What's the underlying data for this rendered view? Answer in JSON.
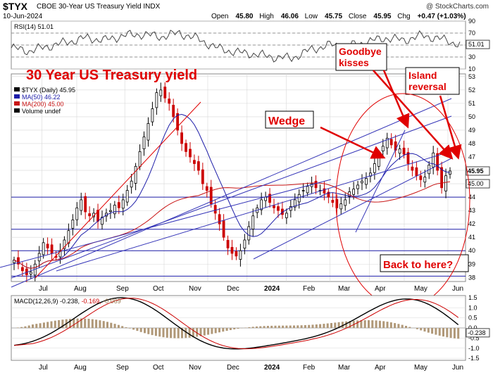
{
  "header": {
    "symbol": "$TYX",
    "name": "CBOE 30-Year US Treasury Yield INDX",
    "date": "10-Jun-2024",
    "brand": "@ StockCharts.com",
    "open_label": "Open",
    "open": "45.80",
    "high_label": "High",
    "high": "46.06",
    "low_label": "Low",
    "low": "45.75",
    "close_label": "Close",
    "close": "45.95",
    "chg_label": "Chg",
    "chg": "+0.47 (+1.03%)"
  },
  "colors": {
    "candle_up": "#000000",
    "candle_down": "#cc0000",
    "ma50": "#1c1ca8",
    "ma200": "#c81414",
    "trendlines": "#3535b8",
    "annotation_red": "#e00000",
    "rsi_line": "#444444",
    "grid": "#d8d8d8",
    "hline": "#1c1ca8"
  },
  "annotations": {
    "main_title": "30 Year US Treasury yield",
    "wedge": "Wedge",
    "goodbye": "Goodbye kisses",
    "goodbye_lines": [
      "Goodbye",
      "kisses"
    ],
    "island": "Island reversal",
    "island_lines": [
      "Island",
      "reversal"
    ],
    "back": "Back to here?"
  },
  "chart_data": [
    {
      "type": "line",
      "title": "RSI(14) 51.01",
      "label": "RSI(14) 51.01",
      "ylim": [
        10,
        90
      ],
      "yticks": [
        10,
        30,
        50,
        70,
        90
      ],
      "reference_lines": [
        30,
        50,
        70
      ],
      "last_value_label": "51.01",
      "x": [
        0,
        10,
        20,
        30,
        40,
        50,
        60,
        70,
        80,
        90,
        100,
        110,
        120,
        130,
        140,
        150,
        160,
        170,
        180,
        190,
        200,
        210,
        220,
        230,
        240
      ],
      "values": [
        45,
        40,
        48,
        55,
        62,
        58,
        66,
        68,
        64,
        70,
        60,
        45,
        38,
        35,
        30,
        28,
        42,
        50,
        48,
        55,
        62,
        58,
        66,
        60,
        51
      ]
    },
    {
      "type": "candlestick",
      "title": "$TYX (Daily) 45.95",
      "legend": [
        {
          "name": "$TYX (Daily) 45.95",
          "color": "#000000"
        },
        {
          "name": "MA(50) 46.22",
          "color": "#1c1ca8"
        },
        {
          "name": "MA(200) 45.00",
          "color": "#c81414"
        },
        {
          "name": "Volume undef",
          "color": "#000000"
        }
      ],
      "ylim": [
        37.7,
        53.2
      ],
      "yticks": [
        38,
        39,
        40,
        41,
        42,
        43,
        44,
        45,
        46,
        47,
        48,
        49,
        50,
        51,
        52,
        53
      ],
      "price_labels": [
        {
          "value": 45.95,
          "label": "45.95"
        },
        {
          "value": 45.0,
          "label": "45.00"
        }
      ],
      "horizontal_levels": [
        44.0,
        41.6,
        40.0,
        38.1
      ],
      "x_ticks": [
        {
          "label": "Jul",
          "x": 0.07
        },
        {
          "label": "Aug",
          "x": 0.15
        },
        {
          "label": "Sep",
          "x": 0.26
        },
        {
          "label": "Oct",
          "x": 0.35
        },
        {
          "label": "Nov",
          "x": 0.45
        },
        {
          "label": "Dec",
          "x": 0.54
        },
        {
          "label": "2024",
          "x": 0.63
        },
        {
          "label": "Feb",
          "x": 0.73
        },
        {
          "label": "Mar",
          "x": 0.82
        },
        {
          "label": "Apr",
          "x": 0.9
        },
        {
          "label": "May",
          "x": 1.0
        }
      ],
      "closes": [
        39.3,
        39.0,
        38.5,
        38.2,
        38.4,
        39.0,
        39.8,
        40.6,
        40.2,
        39.8,
        39.5,
        40.0,
        40.8,
        41.5,
        42.3,
        43.2,
        43.8,
        42.9,
        42.6,
        42.8,
        42.2,
        42.5,
        42.8,
        43.0,
        43.4,
        43.2,
        43.8,
        44.5,
        45.2,
        46.3,
        47.4,
        48.5,
        49.5,
        50.6,
        51.8,
        52.0,
        51.4,
        51.0,
        50.0,
        49.0,
        48.0,
        47.4,
        47.0,
        46.5,
        46.0,
        45.0,
        44.5,
        43.5,
        42.8,
        42.0,
        41.0,
        40.2,
        39.8,
        39.6,
        40.0,
        40.8,
        41.8,
        42.6,
        43.2,
        43.8,
        44.0,
        43.6,
        43.2,
        43.0,
        42.7,
        42.8,
        43.3,
        43.8,
        44.2,
        44.5,
        44.8,
        45.0,
        44.7,
        44.5,
        44.3,
        44.0,
        43.6,
        43.2,
        43.5,
        43.8,
        44.4,
        44.6,
        44.9,
        45.2,
        45.4,
        45.8,
        46.5,
        47.2,
        47.8,
        48.4,
        47.9,
        47.5,
        47.6,
        47.2,
        46.5,
        46.0,
        45.6,
        45.3,
        45.5,
        46.4,
        47.3,
        46.0,
        44.7,
        45.6,
        45.95
      ],
      "volume_label": "Volume undef"
    },
    {
      "type": "line",
      "title": "MACD(12,26,9) -0.238, -0.169, -0.069",
      "label_parts": [
        "MACD(12,26,9)",
        "-0.238",
        "-0.169",
        "-0.069"
      ],
      "series": [
        {
          "name": "MACD",
          "color": "#000000"
        },
        {
          "name": "Signal",
          "color": "#cc0000"
        },
        {
          "name": "Histogram",
          "color": "#b09878"
        }
      ],
      "ylim": [
        -1.6,
        1.6
      ],
      "yticks": [
        1.5,
        1.0,
        0.5,
        0.0,
        -0.5,
        -1.0,
        -1.5
      ],
      "ytick_labels": [
        "1.5",
        "1.0",
        "0.5",
        "0.0",
        "-0.5",
        "-1.0",
        "-1.5"
      ],
      "last_value_label": "-0.238"
    }
  ],
  "bottom_axis": [
    "Jul",
    "Aug",
    "Sep",
    "Oct",
    "Nov",
    "Dec",
    "2024",
    "Feb",
    "Mar",
    "Apr",
    "May",
    "Jun"
  ]
}
